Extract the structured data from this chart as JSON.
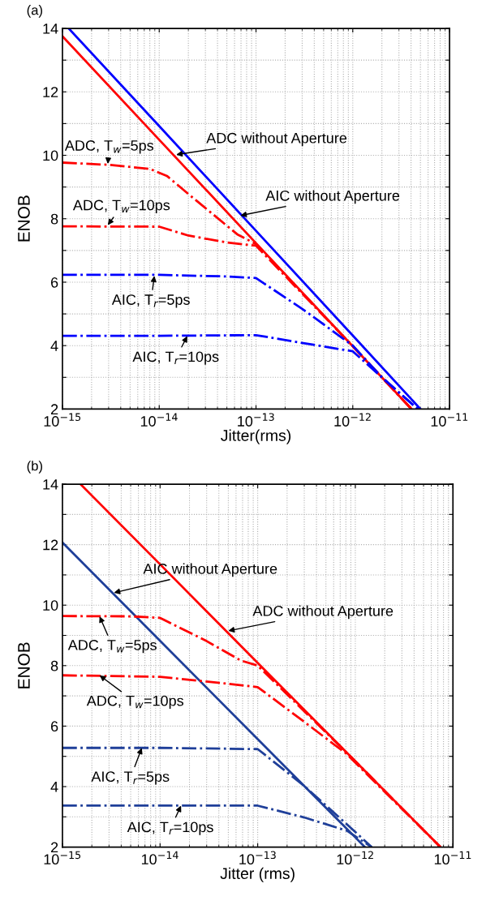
{
  "chart_data": [
    {
      "type": "line",
      "title": "(a)",
      "xlabel": "Jitter(rms)",
      "ylabel": "ENOB",
      "log": "x",
      "grid": true,
      "xlim": [
        1e-15,
        1e-11
      ],
      "ylim": [
        2,
        14
      ],
      "xticks": [
        {
          "value": 1e-15,
          "label": "10$^{−15}$"
        },
        {
          "value": 1e-14,
          "label": "10$^{−14}$"
        },
        {
          "value": 1e-13,
          "label": "10$^{−13}$"
        },
        {
          "value": 1e-12,
          "label": "10$^{−12}$"
        },
        {
          "value": 1e-11,
          "label": "10$^{−11}$"
        }
      ],
      "yticks": [
        2,
        {
          "value": 3,
          "label": null
        },
        4,
        {
          "value": 5,
          "label": null
        },
        6,
        {
          "value": 7,
          "label": null
        },
        8,
        {
          "value": 9,
          "label": null
        },
        10,
        {
          "value": 11,
          "label": null
        },
        12,
        {
          "value": 13,
          "label": null
        },
        14
      ],
      "series": [
        {
          "color": "#0000ff",
          "line_style": "solid",
          "x": [
            1.16e-15,
            1e-14,
            1e-13,
            1e-12,
            5e-12
          ],
          "values": [
            14,
            10.92,
            7.62,
            4.32,
            2
          ]
        },
        {
          "color": "#ff0000",
          "line_style": "solid",
          "x": [
            1e-15,
            1e-14,
            1e-13,
            1e-12,
            4.04e-12
          ],
          "values": [
            13.75,
            10.49,
            7.23,
            3.98,
            2
          ]
        },
        {
          "color": "#ff0000",
          "line_style": "dashdot",
          "x": [
            1e-15,
            3e-15,
            8e-15,
            1.2e-14,
            2e-14,
            6.4e-14,
            1e-13,
            1e-12,
            4.04e-12
          ],
          "values": [
            9.77,
            9.7,
            9.57,
            9.35,
            8.78,
            7.51,
            7.2,
            3.98,
            2
          ]
        },
        {
          "color": "#ff0000",
          "line_style": "dashdot",
          "x": [
            1e-15,
            1e-14,
            2e-14,
            5e-14,
            1e-13,
            1e-12,
            4.04e-12
          ],
          "values": [
            7.76,
            7.75,
            7.47,
            7.25,
            7.15,
            3.98,
            2
          ]
        },
        {
          "color": "#0000ff",
          "line_style": "dashdot",
          "x": [
            1e-15,
            1e-14,
            5e-14,
            1e-13,
            3e-13,
            1e-12,
            2e-12,
            4.7e-12
          ],
          "values": [
            6.23,
            6.23,
            6.18,
            6.13,
            5.16,
            4.0,
            3.0,
            2
          ]
        },
        {
          "color": "#0000ff",
          "line_style": "dashdot",
          "x": [
            1e-15,
            1e-14,
            1e-13,
            1e-12,
            2e-12,
            4.7e-12
          ],
          "values": [
            4.31,
            4.31,
            4.33,
            3.82,
            3.0,
            2
          ]
        }
      ],
      "annotations": [
        {
          "text": "ADC without Aperture",
          "x": 1.5e-14,
          "y": 10.02
        },
        {
          "text": "AIC without Aperture",
          "x": 6.9e-14,
          "y": 8.1
        },
        {
          "text": "ADC, T$_{w}$=5ps",
          "x": 2.94e-15,
          "y": 9.73
        },
        {
          "text": "ADC, T$_{w}$=10ps",
          "x": 2.94e-15,
          "y": 7.8
        },
        {
          "text": "AIC, T$_{r}$=5ps",
          "x": 8.9e-15,
          "y": 6.2
        },
        {
          "text": "AIC, T$_{r}$=10ps",
          "x": 1.95e-14,
          "y": 4.3
        }
      ]
    },
    {
      "type": "line",
      "title": "(b)",
      "xlabel": "Jitter (rms)",
      "ylabel": "ENOB",
      "log": "x",
      "grid": true,
      "xlim": [
        1e-15,
        1e-11
      ],
      "ylim": [
        2,
        14
      ],
      "xticks": [
        {
          "value": 1e-15,
          "label": "10$^{−15}$"
        },
        {
          "value": 1e-14,
          "label": "10$^{−14}$"
        },
        {
          "value": 1e-13,
          "label": "10$^{−13}$"
        },
        {
          "value": 1e-12,
          "label": "10$^{−12}$"
        },
        {
          "value": 1e-11,
          "label": "10$^{−11}$"
        }
      ],
      "yticks": [
        2,
        {
          "value": 3,
          "label": null
        },
        4,
        {
          "value": 5,
          "label": null
        },
        6,
        {
          "value": 7,
          "label": null
        },
        8,
        {
          "value": 9,
          "label": null
        },
        10,
        {
          "value": 11,
          "label": null
        },
        12,
        {
          "value": 13,
          "label": null
        },
        14
      ],
      "series": [
        {
          "color": "#ff0000",
          "line_style": "solid",
          "x": [
            1.53e-15,
            1e-14,
            1e-13,
            1e-12,
            7.45e-12
          ],
          "values": [
            14,
            11.35,
            8.09,
            4.84,
            2
          ]
        },
        {
          "color": "#1f3f99",
          "line_style": "solid",
          "x": [
            1e-15,
            1e-14,
            1e-13,
            1e-12,
            1.25e-12
          ],
          "values": [
            12.07,
            8.82,
            5.57,
            2.32,
            2
          ]
        },
        {
          "color": "#ff0000",
          "line_style": "dashdot",
          "x": [
            1e-15,
            5e-15,
            1e-14,
            3e-14,
            6.7e-14,
            1e-13,
            1e-12,
            7.45e-12
          ],
          "values": [
            9.64,
            9.63,
            9.58,
            8.81,
            8.17,
            8.0,
            4.84,
            2
          ]
        },
        {
          "color": "#ff0000",
          "line_style": "dashdot",
          "x": [
            1e-15,
            1e-14,
            5e-14,
            1e-13,
            3e-13,
            8e-13,
            7.45e-12
          ],
          "values": [
            7.68,
            7.63,
            7.4,
            7.29,
            6.14,
            5.1,
            2
          ]
        },
        {
          "color": "#1f3f99",
          "line_style": "dashdot",
          "x": [
            1e-15,
            1e-14,
            1e-13,
            1.2e-13,
            3e-13,
            1e-12,
            1.47e-12
          ],
          "values": [
            5.28,
            5.28,
            5.24,
            5.04,
            4.02,
            2.5,
            2
          ]
        },
        {
          "color": "#1f3f99",
          "line_style": "dashdot",
          "x": [
            1e-15,
            1e-14,
            1e-13,
            3e-13,
            8.2e-13,
            1.47e-12
          ],
          "values": [
            3.37,
            3.37,
            3.37,
            2.98,
            2.54,
            2
          ]
        }
      ],
      "annotations": [
        {
          "text": "AIC without Aperture",
          "x": 3.37e-15,
          "y": 10.41
        },
        {
          "text": "ADC without Aperture",
          "x": 5e-14,
          "y": 9.15
        },
        {
          "text": "ADC, T$_{w}$=5ps",
          "x": 2.4e-15,
          "y": 9.63
        },
        {
          "text": "ADC, T$_{w}$=10ps",
          "x": 2.4e-15,
          "y": 7.68
        },
        {
          "text": "AIC, T$_{r}$=5ps",
          "x": 6.5e-15,
          "y": 5.28
        },
        {
          "text": "AIC, T$_{r}$=10ps",
          "x": 1.64e-14,
          "y": 3.37
        }
      ]
    }
  ]
}
